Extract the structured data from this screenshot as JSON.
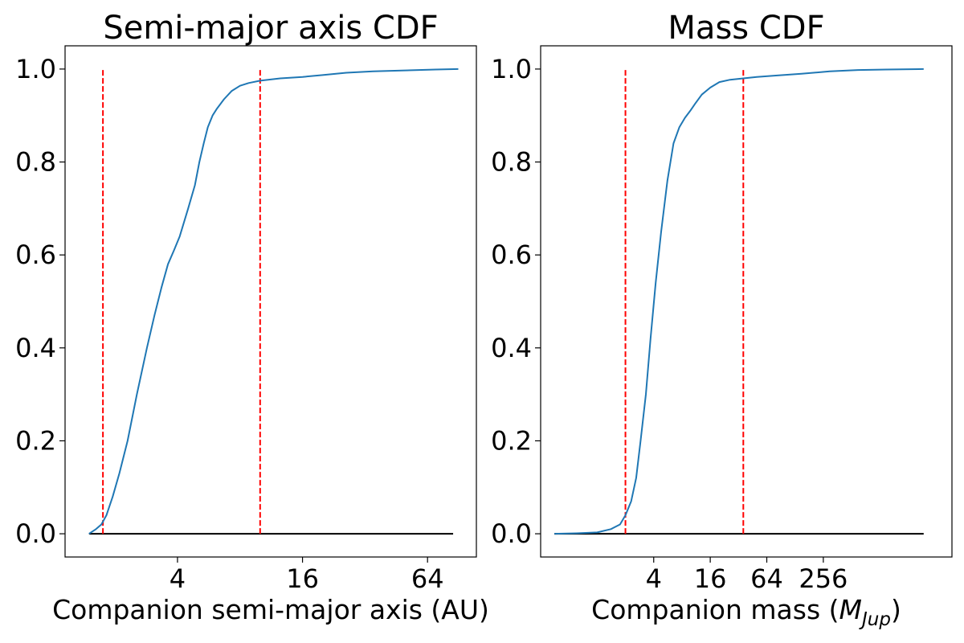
{
  "chart_data": [
    {
      "type": "line",
      "title": "Semi-major axis CDF",
      "xlabel": "Companion semi-major axis (AU)",
      "ylabel": "",
      "xscale": "log2",
      "xlim": [
        1.15,
        110
      ],
      "ylim": [
        -0.05,
        1.05
      ],
      "x_ticks": [
        4,
        16,
        64
      ],
      "x_tick_labels": [
        "4",
        "16",
        "64"
      ],
      "y_ticks": [
        0.0,
        0.2,
        0.4,
        0.6,
        0.8,
        1.0
      ],
      "y_tick_labels": [
        "0.0",
        "0.2",
        "0.4",
        "0.6",
        "0.8",
        "1.0"
      ],
      "grid": false,
      "series": [
        {
          "color": "#1f77b4",
          "x": [
            1.5,
            1.62,
            1.72,
            1.82,
            1.95,
            2.1,
            2.3,
            2.55,
            2.85,
            3.1,
            3.35,
            3.6,
            3.85,
            4.1,
            4.5,
            4.85,
            5.1,
            5.35,
            5.6,
            5.9,
            6.2,
            6.7,
            7.3,
            8.0,
            8.8,
            10.0,
            12.5,
            16.0,
            20.0,
            26.0,
            35.0,
            50.0,
            70.0,
            90.0
          ],
          "y": [
            0.0,
            0.01,
            0.02,
            0.04,
            0.08,
            0.13,
            0.2,
            0.3,
            0.4,
            0.47,
            0.53,
            0.58,
            0.61,
            0.64,
            0.7,
            0.75,
            0.8,
            0.84,
            0.875,
            0.9,
            0.915,
            0.935,
            0.953,
            0.964,
            0.97,
            0.975,
            0.98,
            0.983,
            0.987,
            0.992,
            0.995,
            0.997,
            0.999,
            1.0
          ]
        }
      ],
      "vertical_lines": [
        {
          "x": 1.75,
          "ymin": 0.0,
          "ymax": 1.0,
          "color": "#ff0000",
          "style": "dashed"
        },
        {
          "x": 10.0,
          "ymin": 0.0,
          "ymax": 1.0,
          "color": "#ff0000",
          "style": "dashed"
        }
      ],
      "horizontal_lines": [
        {
          "y": 0.0,
          "xmin": 1.5,
          "xmax": 85.0,
          "color": "#000000",
          "style": "solid"
        }
      ]
    },
    {
      "type": "line",
      "title": "Mass CDF",
      "xlabel": "Companion mass (",
      "xlabel_math": "M",
      "xlabel_sub": "Jup",
      "xlabel_close": ")",
      "ylabel": "",
      "xscale": "log2",
      "xlim": [
        0.25,
        6000
      ],
      "ylim": [
        -0.05,
        1.05
      ],
      "x_ticks": [
        4,
        16,
        64,
        256
      ],
      "x_tick_labels": [
        "4",
        "16",
        "64",
        "256"
      ],
      "y_ticks": [
        0.0,
        0.2,
        0.4,
        0.6,
        0.8,
        1.0
      ],
      "y_tick_labels": [
        "0.0",
        "0.2",
        "0.4",
        "0.6",
        "0.8",
        "1.0"
      ],
      "grid": false,
      "series": [
        {
          "color": "#1f77b4",
          "x": [
            0.35,
            0.6,
            1.0,
            1.4,
            1.75,
            2.0,
            2.3,
            2.6,
            2.9,
            3.3,
            3.7,
            4.2,
            4.8,
            5.6,
            6.5,
            7.5,
            8.6,
            9.8,
            11.0,
            13.0,
            16.0,
            20.0,
            26.0,
            36.0,
            50.0,
            80.0,
            150.0,
            300.0,
            600.0,
            1200.0,
            3000.0
          ],
          "y": [
            0.0,
            0.001,
            0.003,
            0.01,
            0.02,
            0.04,
            0.07,
            0.12,
            0.2,
            0.3,
            0.42,
            0.54,
            0.65,
            0.76,
            0.84,
            0.875,
            0.895,
            0.91,
            0.925,
            0.945,
            0.96,
            0.972,
            0.977,
            0.98,
            0.983,
            0.986,
            0.99,
            0.995,
            0.998,
            0.999,
            1.0
          ]
        }
      ],
      "vertical_lines": [
        {
          "x": 2.0,
          "ymin": 0.0,
          "ymax": 1.0,
          "color": "#ff0000",
          "style": "dashed"
        },
        {
          "x": 36.0,
          "ymin": 0.0,
          "ymax": 1.0,
          "color": "#ff0000",
          "style": "dashed"
        }
      ],
      "horizontal_lines": [
        {
          "y": 0.0,
          "xmin": 0.35,
          "xmax": 3000.0,
          "color": "#000000",
          "style": "solid"
        }
      ]
    }
  ]
}
